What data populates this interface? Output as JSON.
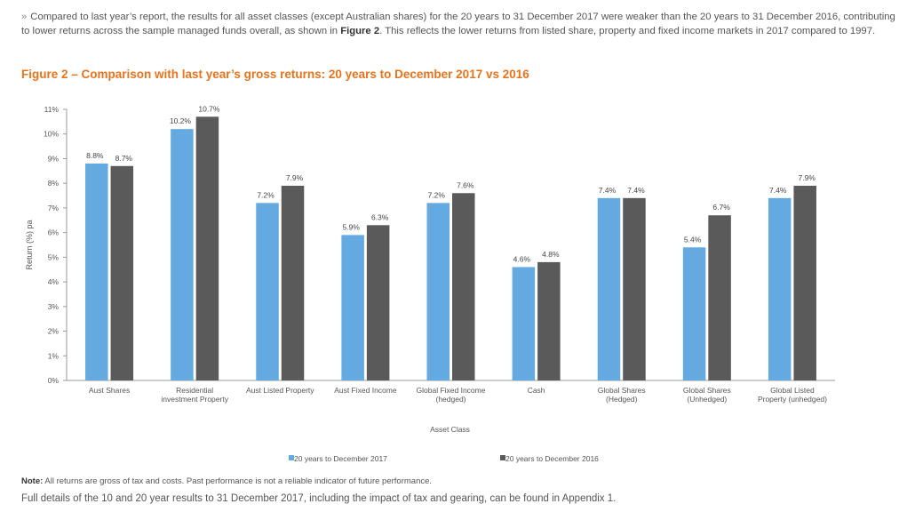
{
  "intro": {
    "chevron": "»",
    "text_before": "Compared to last year’s report, the results for all asset classes (except Australian shares) for the 20 years to 31 December 2017 were weaker than the 20 years to 31 December 2016, contributing to lower returns across the sample managed funds overall, as shown in ",
    "bold": "Figure 2",
    "text_after": ". This reflects the lower returns from listed share, property and fixed income markets in 2017 compared to 1997."
  },
  "figure_title": "Figure 2 – Comparison with last year’s gross returns: 20 years to December 2017 vs 2016",
  "chart_data": {
    "type": "bar",
    "categories": [
      [
        "Aust Shares"
      ],
      [
        "Residential",
        "investment Property"
      ],
      [
        "Aust Listed Property"
      ],
      [
        "Aust Fixed Income"
      ],
      [
        "Global Fixed Income",
        "(hedged)"
      ],
      [
        "Cash"
      ],
      [
        "Global Shares",
        "(Hedged)"
      ],
      [
        "Global Shares",
        "(Unhedged)"
      ],
      [
        "Global Listed",
        "Property (unhedged)"
      ]
    ],
    "series": [
      {
        "name": "20 years to December 2017",
        "values": [
          8.8,
          10.2,
          7.2,
          5.9,
          7.2,
          4.6,
          7.4,
          5.4,
          7.4
        ],
        "labels": [
          "8.8%",
          "10.2%",
          "7.2%",
          "5.9%",
          "7.2%",
          "4.6%",
          "7.4%",
          "5.4%",
          "7.4%"
        ],
        "color": "#64a9df"
      },
      {
        "name": "20 years to December 2016",
        "values": [
          8.7,
          10.7,
          7.9,
          6.3,
          7.6,
          4.8,
          7.4,
          6.7,
          7.9
        ],
        "labels": [
          "8.7%",
          "10.7%",
          "7.9%",
          "6.3%",
          "7.6%",
          "4.8%",
          "7.4%",
          "6.7%",
          "7.9%"
        ],
        "color": "#5a5a5a"
      }
    ],
    "yticks": [
      "0%",
      "1%",
      "2%",
      "3%",
      "4%",
      "5%",
      "6%",
      "7%",
      "8%",
      "9%",
      "10%",
      "11%"
    ],
    "ylim": [
      0,
      11
    ],
    "ylabel": "Return (%) pa",
    "xlabel": "Asset Class",
    "grid": false,
    "legend_position": "bottom"
  },
  "note": {
    "bold": "Note:",
    "text": " All returns are gross of tax and costs. Past performance is not a reliable indicator of future performance."
  },
  "footer": "Full details of the 10 and 20 year results to 31 December 2017, including the impact of tax and gearing, can be found in Appendix 1."
}
